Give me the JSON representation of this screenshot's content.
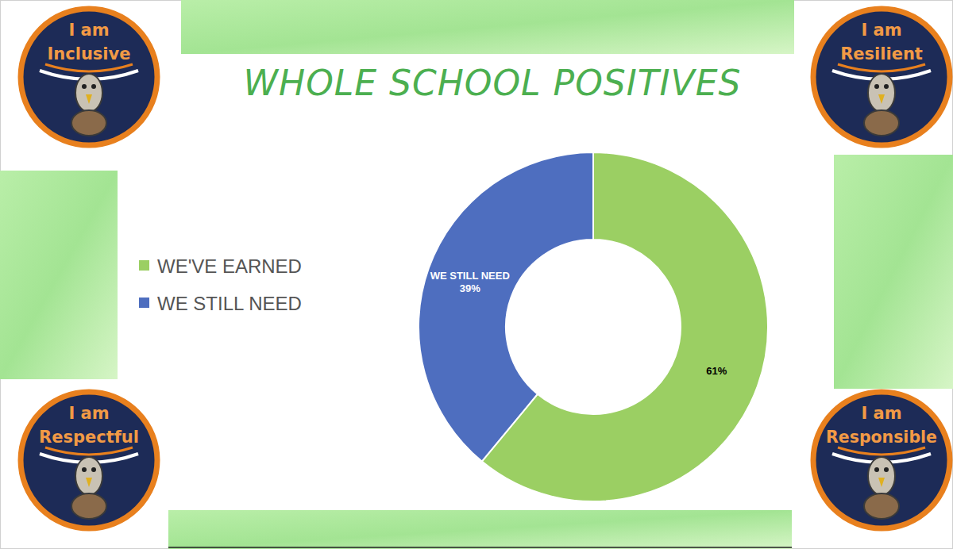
{
  "chart_data": {
    "type": "donut",
    "title": "WHOLE SCHOOL POSITIVES",
    "categories": [
      "WE'VE EARNED",
      "WE STILL NEED"
    ],
    "values": [
      61,
      39
    ],
    "value_labels": [
      "61%",
      "WE STILL NEED 39%"
    ],
    "colors": [
      "#9BCF63",
      "#4E6EBF"
    ],
    "data_labels": true,
    "legend": "left"
  },
  "badges": [
    {
      "top": "I am",
      "word": "Inclusive"
    },
    {
      "top": "I am",
      "word": "Resilient"
    },
    {
      "top": "I am",
      "word": "Respectful"
    },
    {
      "top": "I am",
      "word": "Responsible"
    }
  ]
}
